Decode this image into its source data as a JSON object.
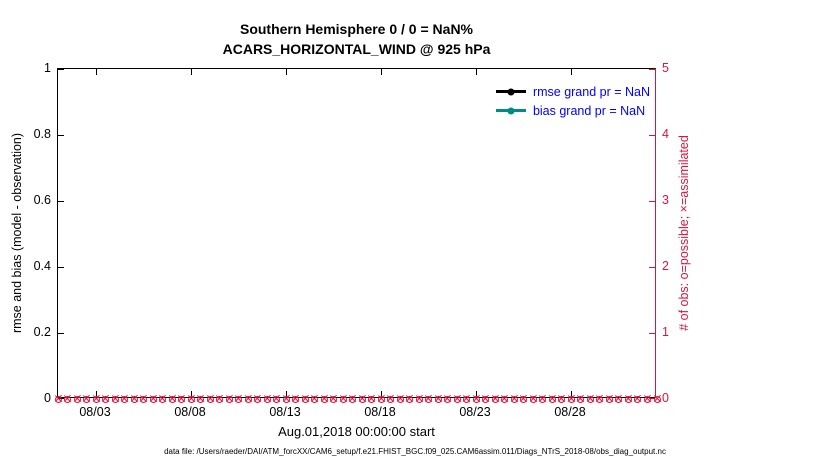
{
  "page": {
    "caption": "data file: /Users/raeder/DAI/ATM_forcXX/CAM6_setup/f.e21.FHIST_BGC.f09_025.CAM6assim.011/Diags_NTrS_2018-08/obs_diag_output.nc"
  },
  "chart_data": {
    "type": "line",
    "title": "Southern Hemisphere 0 / 0 = NaN%",
    "subtitle": "ACARS_HORIZONTAL_WIND @ 925 hPa",
    "xlabel": "Aug.01,2018 00:00:00 start",
    "grid": false,
    "legend_position": "top-right-inside",
    "legend_text_color": "#0000ff",
    "left_axis": {
      "label": "rmse and bias (model - observation)",
      "ylim": [
        0,
        1
      ],
      "ticks": [
        0,
        0.2,
        0.4,
        0.6,
        0.8,
        1
      ],
      "color": "#000000"
    },
    "right_axis": {
      "label": "# of obs: o=possible; ×=assimilated",
      "ylim": [
        0,
        5
      ],
      "ticks": [
        0,
        1,
        2,
        3,
        4,
        5
      ],
      "color": "#dc143c"
    },
    "x_axis": {
      "domain_days": [
        0,
        31.5
      ],
      "tick_days": [
        2,
        7,
        12,
        17,
        22,
        27
      ],
      "tick_labels": [
        "08/03",
        "08/08",
        "08/13",
        "08/18",
        "08/23",
        "08/28"
      ]
    },
    "legend": [
      {
        "label": "rmse grand pr = NaN",
        "color": "#000000"
      },
      {
        "label": "bias grand pr = NaN",
        "color": "#008b8b"
      }
    ],
    "series": [
      {
        "name": "rmse",
        "color": "#000000",
        "values": []
      },
      {
        "name": "bias",
        "color": "#008b8b",
        "values": []
      }
    ],
    "obs_markers": {
      "color": "#dc143c",
      "y_value": 0,
      "interval_days": 0.5,
      "marker_possible": "o",
      "marker_assimilated": "x"
    }
  }
}
